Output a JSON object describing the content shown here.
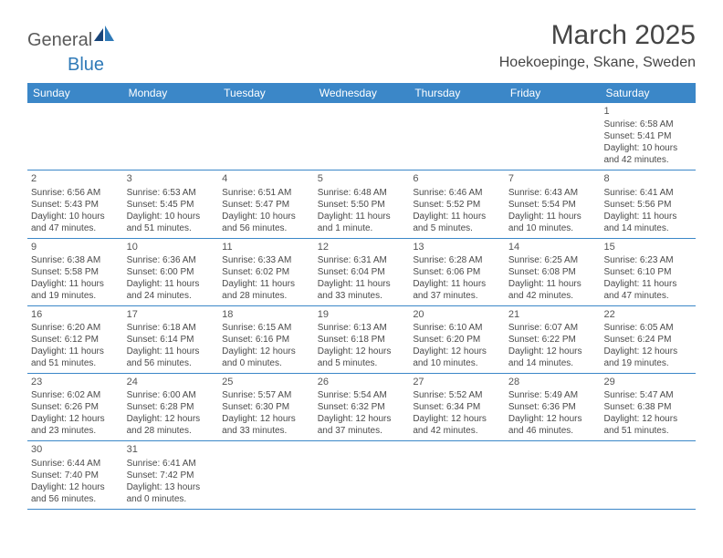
{
  "logo": {
    "part1": "General",
    "part2": "Blue"
  },
  "title": "March 2025",
  "location": "Hoekoepinge, Skane, Sweden",
  "colors": {
    "header_bg": "#3b87c8",
    "header_text": "#ffffff",
    "border": "#3b87c8",
    "text": "#4a4a4a",
    "logo_gray": "#5a5a5a",
    "logo_blue": "#2f7ab8"
  },
  "day_headers": [
    "Sunday",
    "Monday",
    "Tuesday",
    "Wednesday",
    "Thursday",
    "Friday",
    "Saturday"
  ],
  "weeks": [
    [
      null,
      null,
      null,
      null,
      null,
      null,
      {
        "d": "1",
        "sr": "Sunrise: 6:58 AM",
        "ss": "Sunset: 5:41 PM",
        "dl": "Daylight: 10 hours and 42 minutes."
      }
    ],
    [
      {
        "d": "2",
        "sr": "Sunrise: 6:56 AM",
        "ss": "Sunset: 5:43 PM",
        "dl": "Daylight: 10 hours and 47 minutes."
      },
      {
        "d": "3",
        "sr": "Sunrise: 6:53 AM",
        "ss": "Sunset: 5:45 PM",
        "dl": "Daylight: 10 hours and 51 minutes."
      },
      {
        "d": "4",
        "sr": "Sunrise: 6:51 AM",
        "ss": "Sunset: 5:47 PM",
        "dl": "Daylight: 10 hours and 56 minutes."
      },
      {
        "d": "5",
        "sr": "Sunrise: 6:48 AM",
        "ss": "Sunset: 5:50 PM",
        "dl": "Daylight: 11 hours and 1 minute."
      },
      {
        "d": "6",
        "sr": "Sunrise: 6:46 AM",
        "ss": "Sunset: 5:52 PM",
        "dl": "Daylight: 11 hours and 5 minutes."
      },
      {
        "d": "7",
        "sr": "Sunrise: 6:43 AM",
        "ss": "Sunset: 5:54 PM",
        "dl": "Daylight: 11 hours and 10 minutes."
      },
      {
        "d": "8",
        "sr": "Sunrise: 6:41 AM",
        "ss": "Sunset: 5:56 PM",
        "dl": "Daylight: 11 hours and 14 minutes."
      }
    ],
    [
      {
        "d": "9",
        "sr": "Sunrise: 6:38 AM",
        "ss": "Sunset: 5:58 PM",
        "dl": "Daylight: 11 hours and 19 minutes."
      },
      {
        "d": "10",
        "sr": "Sunrise: 6:36 AM",
        "ss": "Sunset: 6:00 PM",
        "dl": "Daylight: 11 hours and 24 minutes."
      },
      {
        "d": "11",
        "sr": "Sunrise: 6:33 AM",
        "ss": "Sunset: 6:02 PM",
        "dl": "Daylight: 11 hours and 28 minutes."
      },
      {
        "d": "12",
        "sr": "Sunrise: 6:31 AM",
        "ss": "Sunset: 6:04 PM",
        "dl": "Daylight: 11 hours and 33 minutes."
      },
      {
        "d": "13",
        "sr": "Sunrise: 6:28 AM",
        "ss": "Sunset: 6:06 PM",
        "dl": "Daylight: 11 hours and 37 minutes."
      },
      {
        "d": "14",
        "sr": "Sunrise: 6:25 AM",
        "ss": "Sunset: 6:08 PM",
        "dl": "Daylight: 11 hours and 42 minutes."
      },
      {
        "d": "15",
        "sr": "Sunrise: 6:23 AM",
        "ss": "Sunset: 6:10 PM",
        "dl": "Daylight: 11 hours and 47 minutes."
      }
    ],
    [
      {
        "d": "16",
        "sr": "Sunrise: 6:20 AM",
        "ss": "Sunset: 6:12 PM",
        "dl": "Daylight: 11 hours and 51 minutes."
      },
      {
        "d": "17",
        "sr": "Sunrise: 6:18 AM",
        "ss": "Sunset: 6:14 PM",
        "dl": "Daylight: 11 hours and 56 minutes."
      },
      {
        "d": "18",
        "sr": "Sunrise: 6:15 AM",
        "ss": "Sunset: 6:16 PM",
        "dl": "Daylight: 12 hours and 0 minutes."
      },
      {
        "d": "19",
        "sr": "Sunrise: 6:13 AM",
        "ss": "Sunset: 6:18 PM",
        "dl": "Daylight: 12 hours and 5 minutes."
      },
      {
        "d": "20",
        "sr": "Sunrise: 6:10 AM",
        "ss": "Sunset: 6:20 PM",
        "dl": "Daylight: 12 hours and 10 minutes."
      },
      {
        "d": "21",
        "sr": "Sunrise: 6:07 AM",
        "ss": "Sunset: 6:22 PM",
        "dl": "Daylight: 12 hours and 14 minutes."
      },
      {
        "d": "22",
        "sr": "Sunrise: 6:05 AM",
        "ss": "Sunset: 6:24 PM",
        "dl": "Daylight: 12 hours and 19 minutes."
      }
    ],
    [
      {
        "d": "23",
        "sr": "Sunrise: 6:02 AM",
        "ss": "Sunset: 6:26 PM",
        "dl": "Daylight: 12 hours and 23 minutes."
      },
      {
        "d": "24",
        "sr": "Sunrise: 6:00 AM",
        "ss": "Sunset: 6:28 PM",
        "dl": "Daylight: 12 hours and 28 minutes."
      },
      {
        "d": "25",
        "sr": "Sunrise: 5:57 AM",
        "ss": "Sunset: 6:30 PM",
        "dl": "Daylight: 12 hours and 33 minutes."
      },
      {
        "d": "26",
        "sr": "Sunrise: 5:54 AM",
        "ss": "Sunset: 6:32 PM",
        "dl": "Daylight: 12 hours and 37 minutes."
      },
      {
        "d": "27",
        "sr": "Sunrise: 5:52 AM",
        "ss": "Sunset: 6:34 PM",
        "dl": "Daylight: 12 hours and 42 minutes."
      },
      {
        "d": "28",
        "sr": "Sunrise: 5:49 AM",
        "ss": "Sunset: 6:36 PM",
        "dl": "Daylight: 12 hours and 46 minutes."
      },
      {
        "d": "29",
        "sr": "Sunrise: 5:47 AM",
        "ss": "Sunset: 6:38 PM",
        "dl": "Daylight: 12 hours and 51 minutes."
      }
    ],
    [
      {
        "d": "30",
        "sr": "Sunrise: 6:44 AM",
        "ss": "Sunset: 7:40 PM",
        "dl": "Daylight: 12 hours and 56 minutes."
      },
      {
        "d": "31",
        "sr": "Sunrise: 6:41 AM",
        "ss": "Sunset: 7:42 PM",
        "dl": "Daylight: 13 hours and 0 minutes."
      },
      null,
      null,
      null,
      null,
      null
    ]
  ]
}
